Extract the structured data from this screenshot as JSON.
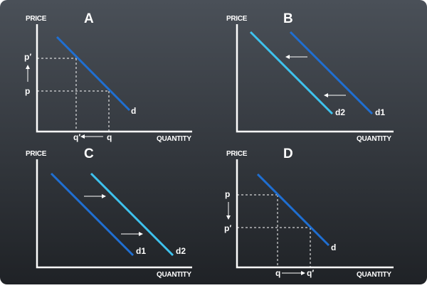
{
  "colors": {
    "background_top": "#4a5058",
    "background_bottom": "#1f2226",
    "axis": "#ffffff",
    "demand_dark": "#1f6fd2",
    "demand_light": "#3ec2ee",
    "guide": "#ffffff"
  },
  "panels": {
    "a": {
      "letter": "A",
      "y_axis": "PRICE",
      "x_axis": "QUANTITY",
      "curve": "d",
      "price_high": "p′",
      "price_low": "p",
      "qty_low": "q′",
      "qty_high": "q"
    },
    "b": {
      "letter": "B",
      "y_axis": "PRICE",
      "x_axis": "QUANTITY",
      "curve_new": "d2",
      "curve_old": "d1"
    },
    "c": {
      "letter": "C",
      "y_axis": "PRICE",
      "x_axis": "QUANTITY",
      "curve_old": "d1",
      "curve_new": "d2"
    },
    "d": {
      "letter": "D",
      "y_axis": "PRICE",
      "x_axis": "QUANTITY",
      "curve": "d",
      "price_high": "p",
      "price_low": "p′",
      "qty_low": "q",
      "qty_high": "q′"
    }
  }
}
